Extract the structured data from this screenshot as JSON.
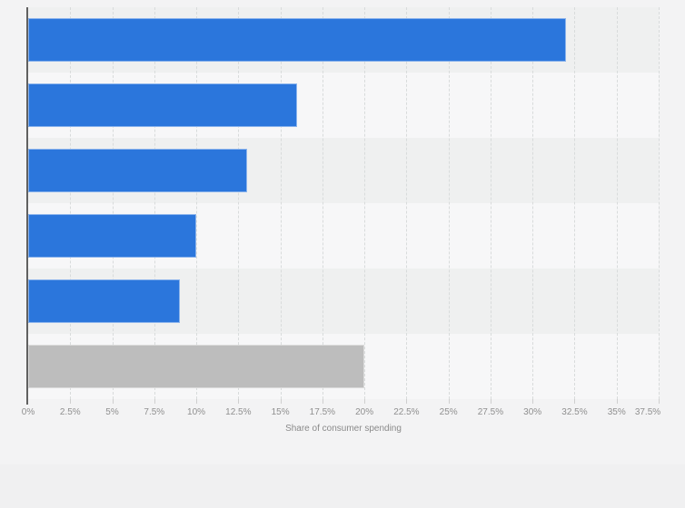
{
  "chart_data": {
    "type": "bar",
    "orientation": "horizontal",
    "note": "category labels are not visible in the screenshot (cropped out on the left)",
    "categories": [
      "",
      "",
      "",
      "",
      "",
      ""
    ],
    "values": [
      32,
      16,
      13,
      10,
      9,
      20
    ],
    "bar_colors": [
      "#2b76dc",
      "#2b76dc",
      "#2b76dc",
      "#2b76dc",
      "#2b76dc",
      "#bdbdbd"
    ],
    "xlabel": "Share of consumer spending",
    "xlim": [
      0,
      37.5
    ],
    "x_tick_step": 2.5,
    "x_tick_labels": [
      "0%",
      "2.5%",
      "5%",
      "7.5%",
      "10%",
      "12.5%",
      "15%",
      "17.5%",
      "20%",
      "22.5%",
      "25%",
      "27.5%",
      "30%",
      "32.5%",
      "35%",
      "37.5%"
    ],
    "grid": "vertical dashed gridlines every 2.5%",
    "plot_bands": "alternating horizontal row shading",
    "legend": "none",
    "title": ""
  },
  "colors": {
    "bar_blue": "#2b76dc",
    "bar_gray": "#bdbdbd",
    "page_bg": "#f0f0f1",
    "surface_bg": "#f3f3f4",
    "band_dark": "#eff0f0",
    "band_light": "#f7f7f8",
    "gridline": "#d8dbdb",
    "axis_line": "#606060",
    "tick_text": "#8f8f8f",
    "axis_title_text": "#8a8a8a"
  }
}
